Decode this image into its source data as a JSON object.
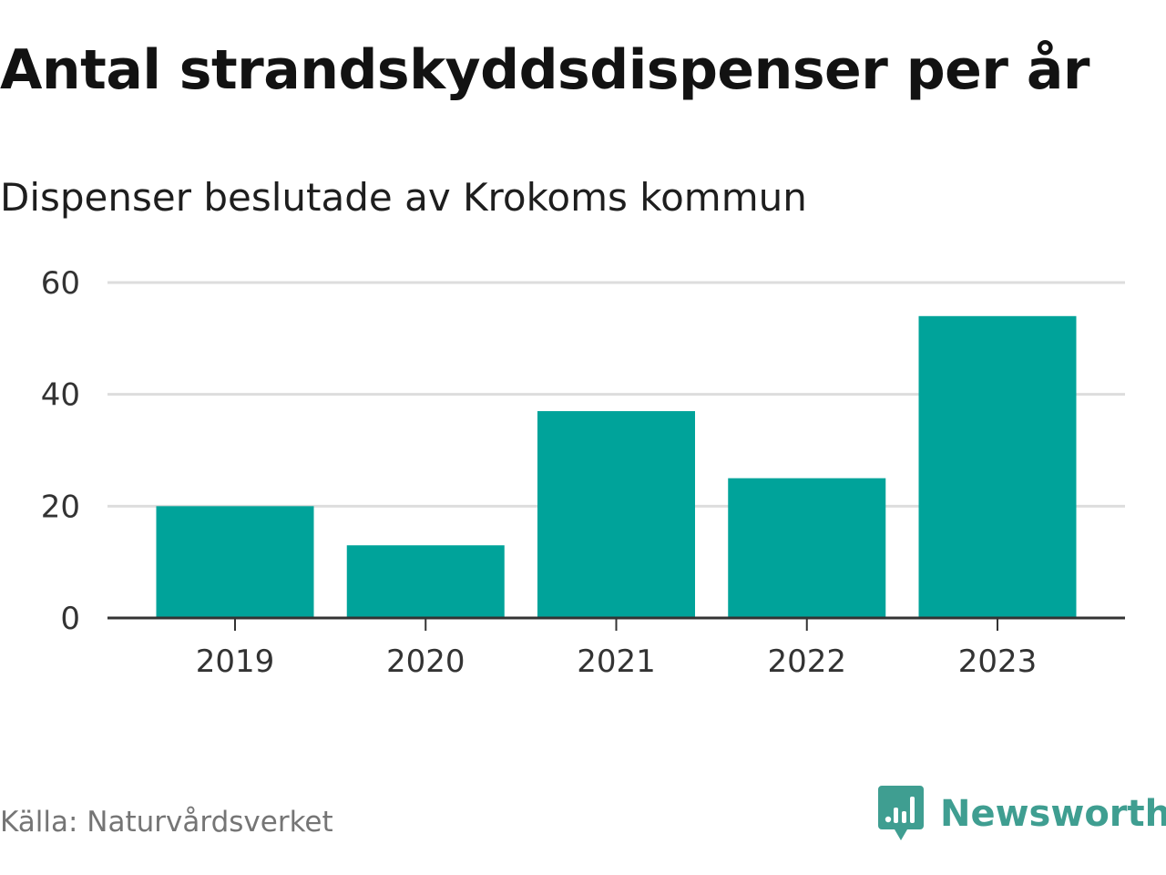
{
  "title": "Antal strandskyddsdispenser per år",
  "subtitle": "Dispenser beslutade av Krokoms kommun",
  "source": "Källa: Naturvårdsverket",
  "brand": {
    "name": "Newsworthy",
    "icon": "newsworthy-logo-icon",
    "color": "#3f9e91"
  },
  "chart_data": {
    "type": "bar",
    "title": "Antal strandskyddsdispenser per år",
    "subtitle": "Dispenser beslutade av Krokoms kommun",
    "xlabel": "",
    "ylabel": "",
    "categories": [
      "2019",
      "2020",
      "2021",
      "2022",
      "2023"
    ],
    "values": [
      20,
      13,
      37,
      25,
      54
    ],
    "ylim": [
      0,
      60
    ],
    "yticks": [
      0,
      20,
      40,
      60
    ],
    "grid": true,
    "legend": "none",
    "bar_color": "#00a39a"
  }
}
